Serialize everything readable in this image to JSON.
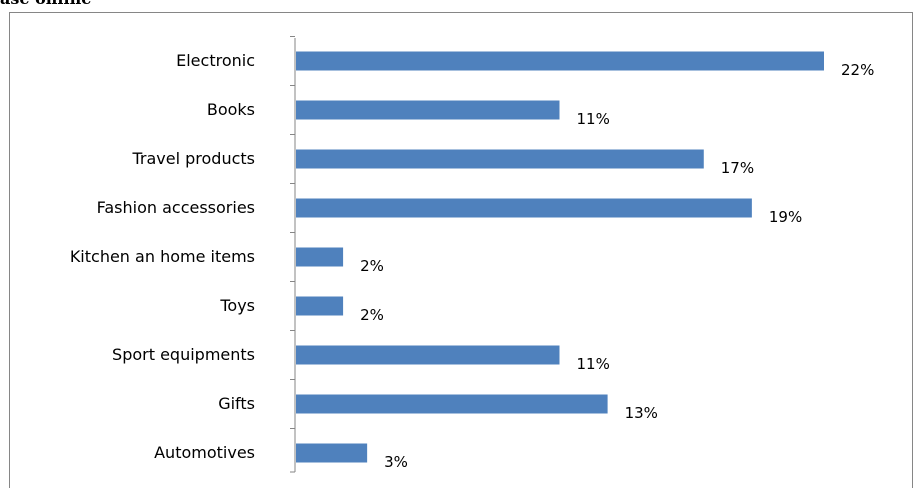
{
  "header": {
    "title_fragment": "ase online"
  },
  "chart_data": {
    "type": "bar",
    "orientation": "horizontal",
    "categories": [
      "Electronic",
      "Books",
      "Travel products",
      "Fashion accessories",
      "Kitchen an home items",
      "Toys",
      "Sport equipments",
      "Gifts",
      "Automotives"
    ],
    "values": [
      22,
      11,
      17,
      19,
      2,
      2,
      11,
      13,
      3
    ],
    "value_labels": [
      "22%",
      "11%",
      "17%",
      "19%",
      "2%",
      "2%",
      "11%",
      "13%",
      "3%"
    ],
    "xlim": [
      0,
      22
    ],
    "grid": false,
    "legend": "none",
    "bar_color": "#4f81bd",
    "axis_color": "#868686"
  }
}
